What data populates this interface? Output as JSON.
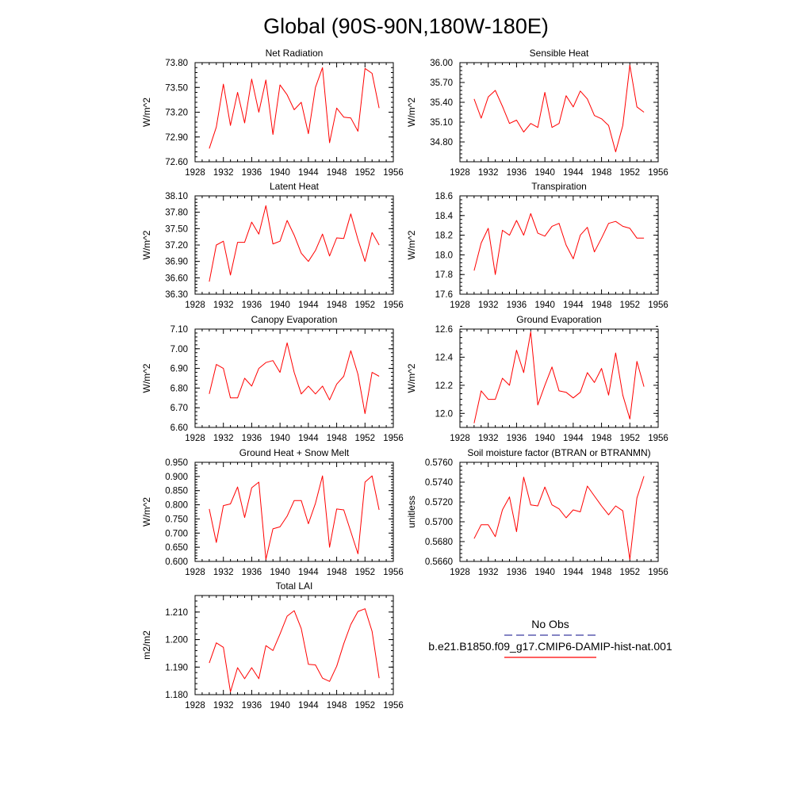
{
  "figure": {
    "title": "Global (90S-90N,180W-180E)"
  },
  "legend": {
    "entries": [
      {
        "label": "No Obs",
        "color": "#3a3aa0",
        "style": "dashed"
      },
      {
        "label": "b.e21.B1850.f09_g17.CMIP6-DAMIP-hist-nat.001",
        "color": "#ff0000",
        "style": "solid"
      }
    ]
  },
  "chart_data": [
    {
      "type": "line",
      "title": "Net Radiation",
      "ylabel": "W/m^2",
      "xlim": [
        1928,
        1956
      ],
      "ylim": [
        72.6,
        73.8
      ],
      "xticks": [
        "1928",
        "1932",
        "1936",
        "1940",
        "1944",
        "1948",
        "1952",
        "1956"
      ],
      "yticks": [
        "72.60",
        "72.90",
        "73.20",
        "73.50",
        "73.80"
      ],
      "series": [
        {
          "color": "#ff0000",
          "x": [
            1930,
            1931,
            1932,
            1933,
            1934,
            1935,
            1936,
            1937,
            1938,
            1939,
            1940,
            1941,
            1942,
            1943,
            1944,
            1945,
            1946,
            1947,
            1948,
            1949,
            1950,
            1951,
            1952,
            1953,
            1954
          ],
          "y": [
            72.76,
            73.02,
            73.54,
            73.04,
            73.44,
            73.07,
            73.6,
            73.2,
            73.59,
            72.93,
            73.53,
            73.41,
            73.23,
            73.32,
            72.94,
            73.5,
            73.74,
            72.83,
            73.25,
            73.14,
            73.13,
            72.97,
            73.73,
            73.67,
            73.25
          ]
        }
      ]
    },
    {
      "type": "line",
      "title": "Sensible Heat",
      "ylabel": "W/m^2",
      "xlim": [
        1928,
        1956
      ],
      "ylim": [
        34.5,
        36.0
      ],
      "xticks": [
        "1928",
        "1932",
        "1936",
        "1940",
        "1944",
        "1948",
        "1952",
        "1956"
      ],
      "yticks": [
        "34.80",
        "35.10",
        "35.40",
        "35.70",
        "36.00"
      ],
      "series": [
        {
          "color": "#ff0000",
          "x": [
            1930,
            1931,
            1932,
            1933,
            1934,
            1935,
            1936,
            1937,
            1938,
            1939,
            1940,
            1941,
            1942,
            1943,
            1944,
            1945,
            1946,
            1947,
            1948,
            1949,
            1950,
            1951,
            1952,
            1953,
            1954
          ],
          "y": [
            35.45,
            35.16,
            35.48,
            35.58,
            35.34,
            35.08,
            35.13,
            34.95,
            35.08,
            35.02,
            35.55,
            35.02,
            35.08,
            35.5,
            35.33,
            35.57,
            35.45,
            35.2,
            35.15,
            35.05,
            34.65,
            35.05,
            35.96,
            35.33,
            35.25
          ]
        }
      ]
    },
    {
      "type": "line",
      "title": "Latent Heat",
      "ylabel": "W/m^2",
      "xlim": [
        1928,
        1956
      ],
      "ylim": [
        36.3,
        38.1
      ],
      "xticks": [
        "1928",
        "1932",
        "1936",
        "1940",
        "1944",
        "1948",
        "1952",
        "1956"
      ],
      "yticks": [
        "36.30",
        "36.60",
        "36.90",
        "37.20",
        "37.50",
        "37.80",
        "38.10"
      ],
      "series": [
        {
          "color": "#ff0000",
          "x": [
            1930,
            1931,
            1932,
            1933,
            1934,
            1935,
            1936,
            1937,
            1938,
            1939,
            1940,
            1941,
            1942,
            1943,
            1944,
            1945,
            1946,
            1947,
            1948,
            1949,
            1950,
            1951,
            1952,
            1953,
            1954
          ],
          "y": [
            36.53,
            37.2,
            37.27,
            36.65,
            37.25,
            37.25,
            37.62,
            37.4,
            37.92,
            37.22,
            37.27,
            37.65,
            37.38,
            37.05,
            36.9,
            37.1,
            37.4,
            37.0,
            37.33,
            37.32,
            37.77,
            37.3,
            36.9,
            37.43,
            37.2
          ]
        }
      ]
    },
    {
      "type": "line",
      "title": "Transpiration",
      "ylabel": "W/m^2",
      "xlim": [
        1928,
        1956
      ],
      "ylim": [
        17.6,
        18.6
      ],
      "xticks": [
        "1928",
        "1932",
        "1936",
        "1940",
        "1944",
        "1948",
        "1952",
        "1956"
      ],
      "yticks": [
        "17.6",
        "17.8",
        "18.0",
        "18.2",
        "18.4",
        "18.6"
      ],
      "series": [
        {
          "color": "#ff0000",
          "x": [
            1930,
            1931,
            1932,
            1933,
            1934,
            1935,
            1936,
            1937,
            1938,
            1939,
            1940,
            1941,
            1942,
            1943,
            1944,
            1945,
            1946,
            1947,
            1948,
            1949,
            1950,
            1951,
            1952,
            1953,
            1954
          ],
          "y": [
            17.84,
            18.12,
            18.27,
            17.8,
            18.25,
            18.2,
            18.35,
            18.2,
            18.42,
            18.22,
            18.19,
            18.29,
            18.32,
            18.1,
            17.96,
            18.2,
            18.28,
            18.03,
            18.17,
            18.32,
            18.34,
            18.29,
            18.27,
            18.17,
            18.17
          ]
        }
      ]
    },
    {
      "type": "line",
      "title": "Canopy Evaporation",
      "ylabel": "W/m^2",
      "xlim": [
        1928,
        1956
      ],
      "ylim": [
        6.6,
        7.1
      ],
      "xticks": [
        "1928",
        "1932",
        "1936",
        "1940",
        "1944",
        "1948",
        "1952",
        "1956"
      ],
      "yticks": [
        "6.60",
        "6.70",
        "6.80",
        "6.90",
        "7.00",
        "7.10"
      ],
      "series": [
        {
          "color": "#ff0000",
          "x": [
            1930,
            1931,
            1932,
            1933,
            1934,
            1935,
            1936,
            1937,
            1938,
            1939,
            1940,
            1941,
            1942,
            1943,
            1944,
            1945,
            1946,
            1947,
            1948,
            1949,
            1950,
            1951,
            1952,
            1953,
            1954
          ],
          "y": [
            6.77,
            6.92,
            6.9,
            6.75,
            6.75,
            6.85,
            6.81,
            6.9,
            6.93,
            6.94,
            6.88,
            7.03,
            6.88,
            6.77,
            6.81,
            6.77,
            6.81,
            6.74,
            6.82,
            6.86,
            6.99,
            6.87,
            6.67,
            6.88,
            6.86
          ]
        }
      ]
    },
    {
      "type": "line",
      "title": "Ground Evaporation",
      "ylabel": "W/m^2",
      "xlim": [
        1928,
        1956
      ],
      "ylim": [
        11.9,
        12.6
      ],
      "xticks": [
        "1928",
        "1932",
        "1936",
        "1940",
        "1944",
        "1948",
        "1952",
        "1956"
      ],
      "yticks": [
        "12.0",
        "12.2",
        "12.4",
        "12.6"
      ],
      "series": [
        {
          "color": "#ff0000",
          "x": [
            1930,
            1931,
            1932,
            1933,
            1934,
            1935,
            1936,
            1937,
            1938,
            1939,
            1940,
            1941,
            1942,
            1943,
            1944,
            1945,
            1946,
            1947,
            1948,
            1949,
            1950,
            1951,
            1952,
            1953,
            1954
          ],
          "y": [
            11.93,
            12.16,
            12.1,
            12.1,
            12.25,
            12.2,
            12.45,
            12.29,
            12.58,
            12.06,
            12.2,
            12.33,
            12.16,
            12.15,
            12.11,
            12.15,
            12.29,
            12.22,
            12.32,
            12.13,
            12.43,
            12.13,
            11.96,
            12.37,
            12.19
          ]
        }
      ]
    },
    {
      "type": "line",
      "title": "Ground Heat + Snow Melt",
      "ylabel": "W/m^2",
      "xlim": [
        1928,
        1956
      ],
      "ylim": [
        0.6,
        0.95
      ],
      "xticks": [
        "1928",
        "1932",
        "1936",
        "1940",
        "1944",
        "1948",
        "1952",
        "1956"
      ],
      "yticks": [
        "0.600",
        "0.650",
        "0.700",
        "0.750",
        "0.800",
        "0.850",
        "0.900",
        "0.950"
      ],
      "series": [
        {
          "color": "#ff0000",
          "x": [
            1930,
            1931,
            1932,
            1933,
            1934,
            1935,
            1936,
            1937,
            1938,
            1939,
            1940,
            1941,
            1942,
            1943,
            1944,
            1945,
            1946,
            1947,
            1948,
            1949,
            1950,
            1951,
            1952,
            1953,
            1954
          ],
          "y": [
            0.785,
            0.667,
            0.797,
            0.803,
            0.863,
            0.755,
            0.86,
            0.88,
            0.607,
            0.715,
            0.722,
            0.76,
            0.815,
            0.815,
            0.733,
            0.805,
            0.902,
            0.65,
            0.785,
            0.782,
            0.705,
            0.627,
            0.88,
            0.902,
            0.782
          ]
        }
      ]
    },
    {
      "type": "line",
      "title": "Soil moisture factor (BTRAN or BTRANMN)",
      "ylabel": "unitless",
      "xlim": [
        1928,
        1956
      ],
      "ylim": [
        0.566,
        0.576
      ],
      "xticks": [
        "1928",
        "1932",
        "1936",
        "1940",
        "1944",
        "1948",
        "1952",
        "1956"
      ],
      "yticks": [
        "0.5660",
        "0.5680",
        "0.5700",
        "0.5720",
        "0.5740",
        "0.5760"
      ],
      "series": [
        {
          "color": "#ff0000",
          "x": [
            1930,
            1931,
            1932,
            1933,
            1934,
            1935,
            1936,
            1937,
            1938,
            1939,
            1940,
            1941,
            1942,
            1943,
            1944,
            1945,
            1946,
            1947,
            1948,
            1949,
            1950,
            1951,
            1952,
            1953,
            1954
          ],
          "y": [
            0.5683,
            0.5697,
            0.5697,
            0.5685,
            0.5712,
            0.5725,
            0.569,
            0.5745,
            0.5717,
            0.5716,
            0.5735,
            0.5717,
            0.5713,
            0.5704,
            0.5712,
            0.571,
            0.5736,
            0.5726,
            0.5716,
            0.5707,
            0.5716,
            0.5711,
            0.5662,
            0.5724,
            0.5746
          ]
        }
      ]
    },
    {
      "type": "line",
      "title": "Total LAI",
      "ylabel": "m2/m2",
      "xlim": [
        1928,
        1956
      ],
      "ylim": [
        1.18,
        1.216
      ],
      "xticks": [
        "1928",
        "1932",
        "1936",
        "1940",
        "1944",
        "1948",
        "1952",
        "1956"
      ],
      "yticks": [
        "1.180",
        "1.190",
        "1.200",
        "1.210"
      ],
      "series": [
        {
          "color": "#ff0000",
          "x": [
            1930,
            1931,
            1932,
            1933,
            1934,
            1935,
            1936,
            1937,
            1938,
            1939,
            1940,
            1941,
            1942,
            1943,
            1944,
            1945,
            1946,
            1947,
            1948,
            1949,
            1950,
            1951,
            1952,
            1953,
            1954
          ],
          "y": [
            1.1915,
            1.1988,
            1.1972,
            1.181,
            1.1898,
            1.1858,
            1.1898,
            1.1858,
            1.1978,
            1.196,
            1.202,
            1.2085,
            1.2105,
            1.204,
            1.191,
            1.1908,
            1.186,
            1.1848,
            1.1903,
            1.1985,
            1.2055,
            1.2102,
            1.2112,
            1.203,
            1.186
          ]
        }
      ]
    }
  ]
}
